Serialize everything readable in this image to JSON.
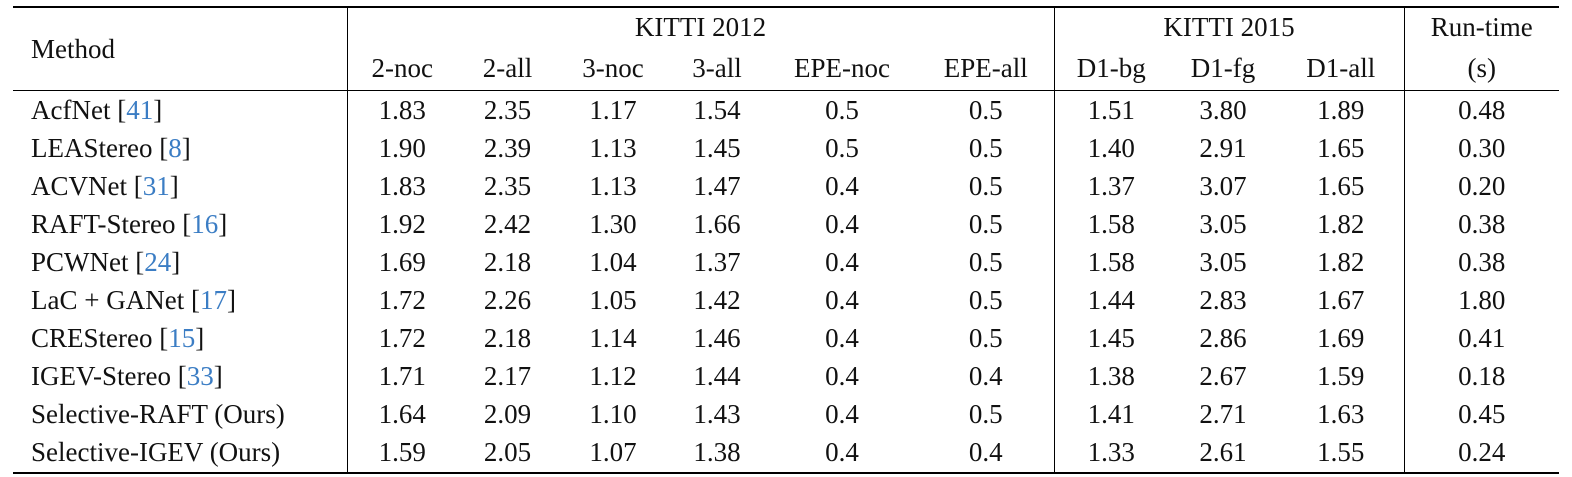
{
  "header": {
    "method": "Method",
    "group_kitti2012": "KITTI 2012",
    "group_kitti2015": "KITTI 2015",
    "runtime_line1": "Run-time",
    "runtime_line2": "(s)",
    "cols": [
      "2-noc",
      "2-all",
      "3-noc",
      "3-all",
      "EPE-noc",
      "EPE-all",
      "D1-bg",
      "D1-fg",
      "D1-all"
    ]
  },
  "rows": [
    {
      "name": "AcfNet ",
      "ref": "41",
      "values": [
        "1.83",
        "2.35",
        "1.17",
        "1.54",
        "0.5",
        "0.5",
        "1.51",
        "3.80",
        "1.89",
        "0.48"
      ],
      "bold": []
    },
    {
      "name": "LEAStereo ",
      "ref": "8",
      "values": [
        "1.90",
        "2.39",
        "1.13",
        "1.45",
        "0.5",
        "0.5",
        "1.40",
        "2.91",
        "1.65",
        "0.30"
      ],
      "bold": []
    },
    {
      "name": "ACVNet ",
      "ref": "31",
      "values": [
        "1.83",
        "2.35",
        "1.13",
        "1.47",
        "0.4",
        "0.5",
        "1.37",
        "3.07",
        "1.65",
        "0.20"
      ],
      "bold": []
    },
    {
      "name": "RAFT-Stereo ",
      "ref": "16",
      "values": [
        "1.92",
        "2.42",
        "1.30",
        "1.66",
        "0.4",
        "0.5",
        "1.58",
        "3.05",
        "1.82",
        "0.38"
      ],
      "bold": []
    },
    {
      "name": "PCWNet ",
      "ref": "24",
      "values": [
        "1.69",
        "2.18",
        "1.04",
        "1.37",
        "0.4",
        "0.5",
        "1.58",
        "3.05",
        "1.82",
        "0.38"
      ],
      "bold": [
        2,
        3
      ]
    },
    {
      "name": "LaC + GANet ",
      "ref": "17",
      "values": [
        "1.72",
        "2.26",
        "1.05",
        "1.42",
        "0.4",
        "0.5",
        "1.44",
        "2.83",
        "1.67",
        "1.80"
      ],
      "bold": []
    },
    {
      "name": "CREStereo ",
      "ref": "15",
      "values": [
        "1.72",
        "2.18",
        "1.14",
        "1.46",
        "0.4",
        "0.5",
        "1.45",
        "2.86",
        "1.69",
        "0.41"
      ],
      "bold": []
    },
    {
      "name": "IGEV-Stereo ",
      "ref": "33",
      "values": [
        "1.71",
        "2.17",
        "1.12",
        "1.44",
        "0.4",
        "0.4",
        "1.38",
        "2.67",
        "1.59",
        "0.18"
      ],
      "bold": []
    },
    {
      "name": "Selective-RAFT (Ours)",
      "ref": "",
      "values": [
        "1.64",
        "2.09",
        "1.10",
        "1.43",
        "0.4",
        "0.5",
        "1.41",
        "2.71",
        "1.63",
        "0.45"
      ],
      "bold": []
    },
    {
      "name": "Selective-IGEV (Ours)",
      "ref": "",
      "values": [
        "1.59",
        "2.05",
        "1.07",
        "1.38",
        "0.4",
        "0.4",
        "1.33",
        "2.61",
        "1.55",
        "0.24"
      ],
      "bold": [
        0,
        1,
        6,
        7,
        8
      ]
    }
  ]
}
